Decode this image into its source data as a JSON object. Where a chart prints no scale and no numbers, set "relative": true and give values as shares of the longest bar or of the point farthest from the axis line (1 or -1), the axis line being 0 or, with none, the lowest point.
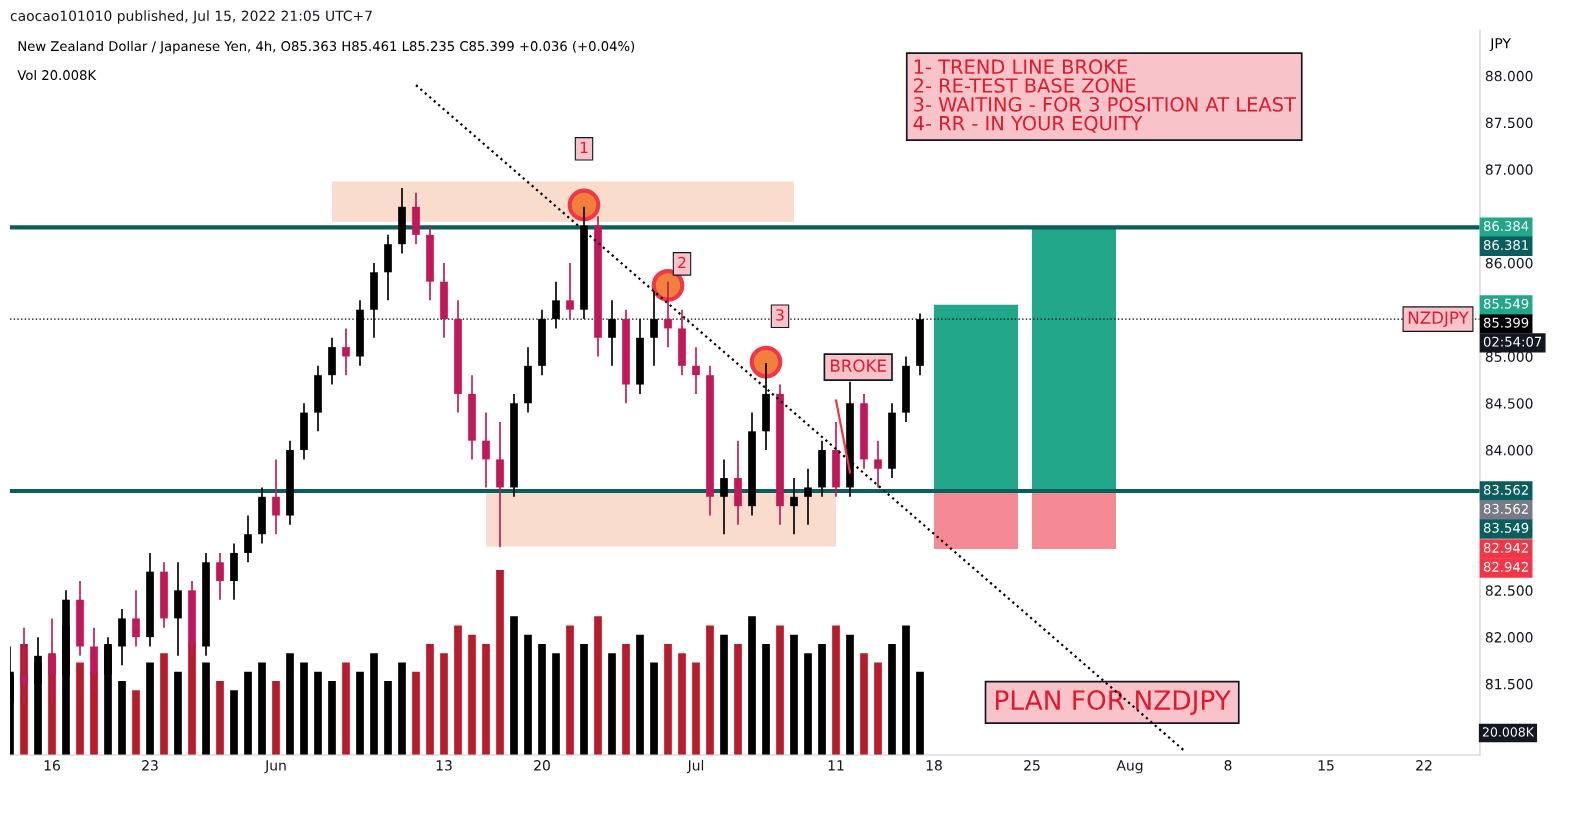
{
  "chart_data": [
    {
      "type": "candlestick",
      "title": "caocao101010 published, Jul 15, 2022 21:05 UTC+7",
      "subtitle": "New Zealand Dollar / Japanese Yen, 4h, O85.363 H85.461 L85.235 C85.399 +0.036 (+0.04%)",
      "ylabel": "JPY",
      "x": [
        "2022-05-13",
        "2022-05-14",
        "2022-05-15",
        "2022-05-16",
        "2022-05-17",
        "2022-05-18",
        "2022-05-19",
        "2022-05-20",
        "2022-05-21",
        "2022-05-22",
        "2022-05-23",
        "2022-05-24",
        "2022-05-25",
        "2022-05-26",
        "2022-05-27",
        "2022-05-28",
        "2022-05-29",
        "2022-05-30",
        "2022-05-31",
        "2022-06-01",
        "2022-06-02",
        "2022-06-03",
        "2022-06-04",
        "2022-06-05",
        "2022-06-06",
        "2022-06-07",
        "2022-06-08",
        "2022-06-09",
        "2022-06-10",
        "2022-06-11",
        "2022-06-12",
        "2022-06-13",
        "2022-06-14",
        "2022-06-15",
        "2022-06-16",
        "2022-06-17",
        "2022-06-18",
        "2022-06-19",
        "2022-06-20",
        "2022-06-21",
        "2022-06-22",
        "2022-06-23",
        "2022-06-24",
        "2022-06-25",
        "2022-06-26",
        "2022-06-27",
        "2022-06-28",
        "2022-06-29",
        "2022-06-30",
        "2022-07-01",
        "2022-07-02",
        "2022-07-03",
        "2022-07-04",
        "2022-07-05",
        "2022-07-06",
        "2022-07-07",
        "2022-07-08",
        "2022-07-09",
        "2022-07-10",
        "2022-07-11",
        "2022-07-12",
        "2022-07-13",
        "2022-07-14",
        "2022-07-15",
        "2022-07-16",
        "2022-07-17"
      ],
      "ohlc": [
        [
          81.3,
          81.9,
          81.1,
          81.6
        ],
        [
          81.6,
          82.1,
          81.3,
          81.5
        ],
        [
          81.5,
          82.0,
          81.2,
          81.8
        ],
        [
          81.8,
          82.2,
          81.3,
          81.6
        ],
        [
          81.6,
          82.5,
          81.5,
          82.4
        ],
        [
          82.4,
          82.6,
          81.8,
          81.9
        ],
        [
          81.9,
          82.1,
          81.4,
          81.6
        ],
        [
          81.6,
          82.0,
          81.4,
          81.9
        ],
        [
          81.9,
          82.3,
          81.7,
          82.2
        ],
        [
          82.2,
          82.5,
          81.9,
          82.0
        ],
        [
          82.0,
          82.9,
          81.9,
          82.7
        ],
        [
          82.7,
          82.8,
          82.1,
          82.2
        ],
        [
          82.2,
          82.8,
          81.8,
          82.5
        ],
        [
          82.5,
          82.6,
          81.8,
          81.9
        ],
        [
          81.9,
          82.9,
          81.8,
          82.8
        ],
        [
          82.8,
          82.9,
          82.4,
          82.6
        ],
        [
          82.6,
          83.0,
          82.4,
          82.9
        ],
        [
          82.9,
          83.3,
          82.8,
          83.1
        ],
        [
          83.1,
          83.6,
          83.0,
          83.5
        ],
        [
          83.5,
          83.9,
          83.1,
          83.3
        ],
        [
          83.3,
          84.1,
          83.2,
          84.0
        ],
        [
          84.0,
          84.5,
          83.9,
          84.4
        ],
        [
          84.4,
          84.9,
          84.2,
          84.8
        ],
        [
          84.8,
          85.2,
          84.7,
          85.1
        ],
        [
          85.1,
          85.3,
          84.8,
          85.0
        ],
        [
          85.0,
          85.6,
          84.9,
          85.5
        ],
        [
          85.5,
          86.0,
          85.2,
          85.9
        ],
        [
          85.9,
          86.3,
          85.6,
          86.2
        ],
        [
          86.2,
          86.8,
          86.1,
          86.6
        ],
        [
          86.6,
          86.75,
          86.2,
          86.3
        ],
        [
          86.3,
          86.4,
          85.6,
          85.8
        ],
        [
          85.8,
          86.0,
          85.2,
          85.4
        ],
        [
          85.4,
          85.6,
          84.4,
          84.6
        ],
        [
          84.6,
          84.8,
          83.9,
          84.1
        ],
        [
          84.1,
          84.4,
          83.6,
          83.9
        ],
        [
          83.9,
          84.3,
          82.96,
          83.6
        ],
        [
          83.6,
          84.6,
          83.5,
          84.5
        ],
        [
          84.5,
          85.1,
          84.4,
          84.9
        ],
        [
          84.9,
          85.5,
          84.8,
          85.4
        ],
        [
          85.4,
          85.8,
          85.3,
          85.6
        ],
        [
          85.6,
          86.0,
          85.4,
          85.5
        ],
        [
          85.5,
          86.6,
          85.4,
          86.4
        ],
        [
          86.4,
          86.5,
          85.0,
          85.2
        ],
        [
          85.2,
          85.6,
          84.9,
          85.4
        ],
        [
          85.4,
          85.5,
          84.5,
          84.7
        ],
        [
          84.7,
          85.4,
          84.6,
          85.2
        ],
        [
          85.2,
          85.7,
          84.9,
          85.4
        ],
        [
          85.4,
          85.8,
          85.1,
          85.3
        ],
        [
          85.3,
          85.5,
          84.8,
          84.9
        ],
        [
          84.9,
          85.1,
          84.6,
          84.8
        ],
        [
          84.8,
          84.9,
          83.3,
          83.5
        ],
        [
          83.5,
          83.9,
          83.1,
          83.7
        ],
        [
          83.7,
          84.1,
          83.2,
          83.4
        ],
        [
          83.4,
          84.4,
          83.3,
          84.2
        ],
        [
          84.2,
          84.93,
          84.0,
          84.6
        ],
        [
          84.6,
          84.7,
          83.2,
          83.4
        ],
        [
          83.4,
          83.7,
          83.1,
          83.5
        ],
        [
          83.5,
          83.8,
          83.2,
          83.6
        ],
        [
          83.6,
          84.1,
          83.5,
          84.0
        ],
        [
          84.0,
          84.3,
          83.5,
          83.6
        ],
        [
          83.6,
          84.73,
          83.5,
          84.5
        ],
        [
          84.5,
          84.6,
          83.8,
          83.9
        ],
        [
          83.9,
          84.1,
          83.6,
          83.8
        ],
        [
          83.8,
          84.5,
          83.7,
          84.4
        ],
        [
          84.4,
          85.0,
          84.3,
          84.9
        ],
        [
          84.9,
          85.46,
          84.8,
          85.399
        ]
      ],
      "colors": [
        "#000000",
        "#c2185b",
        "#000000",
        "#c2185b",
        "#000000",
        "#c2185b",
        "#c2185b",
        "#000000",
        "#000000",
        "#c2185b",
        "#000000",
        "#c2185b",
        "#000000",
        "#c2185b",
        "#000000",
        "#c2185b",
        "#000000",
        "#000000",
        "#000000",
        "#c2185b",
        "#000000",
        "#000000",
        "#000000",
        "#000000",
        "#c2185b",
        "#000000",
        "#000000",
        "#000000",
        "#000000",
        "#c2185b",
        "#c2185b",
        "#c2185b",
        "#c2185b",
        "#c2185b",
        "#c2185b",
        "#c2185b",
        "#000000",
        "#000000",
        "#000000",
        "#000000",
        "#c2185b",
        "#000000",
        "#c2185b",
        "#000000",
        "#c2185b",
        "#000000",
        "#000000",
        "#c2185b",
        "#c2185b",
        "#c2185b",
        "#c2185b",
        "#000000",
        "#c2185b",
        "#000000",
        "#000000",
        "#c2185b",
        "#000000",
        "#000000",
        "#000000",
        "#c2185b",
        "#000000",
        "#c2185b",
        "#c2185b",
        "#000000",
        "#000000",
        "#000000"
      ],
      "series": [
        {
          "type": "bar",
          "x": [
            "2022-06-21T12:00"
          ],
          "base": [
            86.44
          ],
          "values": [
            0.43
          ],
          "color": "#f9dccb"
        },
        {
          "type": "bar",
          "x": [
            "2022-06-28T12:00"
          ],
          "base": [
            82.97
          ],
          "values": [
            0.57
          ],
          "color": "#f9dccb"
        },
        {
          "type": "bar",
          "x": [
            "2022-07-21"
          ],
          "base": [
            83.562
          ],
          "values": [
            1.99
          ],
          "color": "#22a78b"
        },
        {
          "type": "bar",
          "x": [
            "2022-07-21"
          ],
          "base": [
            82.942
          ],
          "values": [
            0.62
          ],
          "color": "#f48a93"
        },
        {
          "type": "bar",
          "x": [
            "2022-07-28"
          ],
          "base": [
            83.562
          ],
          "values": [
            2.82
          ],
          "color": "#22a78b"
        },
        {
          "type": "bar",
          "x": [
            "2022-07-28"
          ],
          "base": [
            82.942
          ],
          "values": [
            0.62
          ],
          "color": "#f48a93"
        },
        {
          "type": "line",
          "x": [
            "2022-06-11",
            "2022-08-05"
          ],
          "values": [
            87.9,
            80.77
          ],
          "color": "#000000",
          "line_style": "dotted"
        },
        {
          "type": "line",
          "x": [
            "2022-07-11",
            "2022-07-12"
          ],
          "values": [
            84.53,
            83.76
          ],
          "color": "#f23645",
          "line_style": "solid"
        },
        {
          "type": "scatter",
          "x": [
            "2022-06-23",
            "2022-06-29",
            "2022-07-06"
          ],
          "values": [
            86.62,
            85.76,
            84.94
          ],
          "color": "#f0803c",
          "marker": "circle"
        }
      ],
      "xlim": [
        "2022-05-13",
        "2022-08-26"
      ],
      "ylim": [
        80.74,
        88.49
      ],
      "xticks": [
        {
          "value": "2022-05-16",
          "label": "16"
        },
        {
          "value": "2022-05-23",
          "label": "23"
        },
        {
          "value": "2022-06-01",
          "label": "Jun"
        },
        {
          "value": "2022-06-13",
          "label": "13"
        },
        {
          "value": "2022-06-20",
          "label": "20"
        },
        {
          "value": "2022-07-01",
          "label": "Jul"
        },
        {
          "value": "2022-07-11",
          "label": "11"
        },
        {
          "value": "2022-07-18",
          "label": "18"
        },
        {
          "value": "2022-07-25",
          "label": "25"
        },
        {
          "value": "2022-08-01",
          "label": "Aug"
        },
        {
          "value": "2022-08-08",
          "label": "8"
        },
        {
          "value": "2022-08-15",
          "label": "15"
        },
        {
          "value": "2022-08-22",
          "label": "22"
        }
      ],
      "yticks": [
        {
          "value": 81.5,
          "label": "81.500"
        },
        {
          "value": 82,
          "label": "82.000"
        },
        {
          "value": 82.5,
          "label": "82.500"
        },
        {
          "value": 84,
          "label": "84.000"
        },
        {
          "value": 84.5,
          "label": "84.500"
        },
        {
          "value": 85,
          "label": "85.000"
        },
        {
          "value": 86,
          "label": "86.000"
        },
        {
          "value": 87,
          "label": "87.000"
        },
        {
          "value": 87.5,
          "label": "87.500"
        },
        {
          "value": 88,
          "label": "88.000"
        }
      ],
      "ref_lines": [
        {
          "axis": "y",
          "value": 86.381,
          "label": "86.381",
          "color": "#0b5e5e",
          "line_style": "solid"
        },
        {
          "axis": "y",
          "value": 83.562,
          "label": "83.562",
          "color": "#0b5e5e",
          "line_style": "solid"
        },
        {
          "axis": "y",
          "value": 85.399,
          "label": "85.399",
          "color": "#000000",
          "line_style": "dotted"
        }
      ],
      "annotations": [
        "Vol 20.008K",
        "1- TREND LINE BROKE\n2- RE-TEST BASE ZONE\n3- WAITING - FOR 3 POSITION AT LEAST\n4- RR - IN YOUR EQUITY",
        "PLAN FOR NZDJPY",
        {
          "text": "1",
          "x": "2022-06-23",
          "y": 87.22
        },
        {
          "text": "2",
          "x": "2022-06-30",
          "y": 85.99
        },
        {
          "text": "3",
          "x": "2022-07-07",
          "y": 85.43
        },
        {
          "text": "NZDJPY",
          "x": "2022-08-23",
          "y": 85.399
        },
        "BROKE",
        "86.384",
        "85.549",
        "02:54:07",
        "83.562",
        "83.549",
        "82.942",
        "82.942"
      ]
    },
    {
      "type": "bar",
      "relative": true,
      "x": [
        "2022-05-13",
        "2022-05-14",
        "2022-05-15",
        "2022-05-16",
        "2022-05-17",
        "2022-05-18",
        "2022-05-19",
        "2022-05-20",
        "2022-05-21",
        "2022-05-22",
        "2022-05-23",
        "2022-05-24",
        "2022-05-25",
        "2022-05-26",
        "2022-05-27",
        "2022-05-28",
        "2022-05-29",
        "2022-05-30",
        "2022-05-31",
        "2022-06-01",
        "2022-06-02",
        "2022-06-03",
        "2022-06-04",
        "2022-06-05",
        "2022-06-06",
        "2022-06-07",
        "2022-06-08",
        "2022-06-09",
        "2022-06-10",
        "2022-06-11",
        "2022-06-12",
        "2022-06-13",
        "2022-06-14",
        "2022-06-15",
        "2022-06-16",
        "2022-06-17",
        "2022-06-18",
        "2022-06-19",
        "2022-06-20",
        "2022-06-21",
        "2022-06-22",
        "2022-06-23",
        "2022-06-24",
        "2022-06-25",
        "2022-06-26",
        "2022-06-27",
        "2022-06-28",
        "2022-06-29",
        "2022-06-30",
        "2022-07-01",
        "2022-07-02",
        "2022-07-03",
        "2022-07-04",
        "2022-07-05",
        "2022-07-06",
        "2022-07-07",
        "2022-07-08",
        "2022-07-09",
        "2022-07-10",
        "2022-07-11",
        "2022-07-12",
        "2022-07-13",
        "2022-07-14",
        "2022-07-15",
        "2022-07-16",
        "2022-07-17"
      ],
      "values": [
        0.45,
        0.6,
        0.5,
        0.55,
        0.7,
        0.5,
        0.45,
        0.6,
        0.4,
        0.35,
        0.5,
        0.55,
        0.45,
        0.6,
        0.5,
        0.4,
        0.35,
        0.45,
        0.5,
        0.4,
        0.55,
        0.5,
        0.45,
        0.4,
        0.5,
        0.45,
        0.55,
        0.4,
        0.5,
        0.45,
        0.6,
        0.55,
        0.7,
        0.65,
        0.6,
        1.0,
        0.75,
        0.65,
        0.6,
        0.55,
        0.7,
        0.6,
        0.75,
        0.55,
        0.6,
        0.65,
        0.5,
        0.6,
        0.55,
        0.5,
        0.7,
        0.65,
        0.6,
        0.75,
        0.6,
        0.7,
        0.65,
        0.55,
        0.6,
        0.7,
        0.65,
        0.55,
        0.5,
        0.6,
        0.7,
        0.45
      ],
      "colors": [
        "#000000",
        "#b71c2c",
        "#000000",
        "#b71c2c",
        "#000000",
        "#b71c2c",
        "#b71c2c",
        "#000000",
        "#000000",
        "#b71c2c",
        "#000000",
        "#b71c2c",
        "#000000",
        "#b71c2c",
        "#000000",
        "#b71c2c",
        "#000000",
        "#000000",
        "#000000",
        "#b71c2c",
        "#000000",
        "#000000",
        "#000000",
        "#000000",
        "#b71c2c",
        "#000000",
        "#000000",
        "#000000",
        "#000000",
        "#b71c2c",
        "#b71c2c",
        "#b71c2c",
        "#b71c2c",
        "#b71c2c",
        "#b71c2c",
        "#b71c2c",
        "#000000",
        "#000000",
        "#000000",
        "#000000",
        "#b71c2c",
        "#000000",
        "#b71c2c",
        "#000000",
        "#b71c2c",
        "#000000",
        "#000000",
        "#b71c2c",
        "#b71c2c",
        "#b71c2c",
        "#b71c2c",
        "#000000",
        "#b71c2c",
        "#000000",
        "#000000",
        "#b71c2c",
        "#000000",
        "#000000",
        "#000000",
        "#b71c2c",
        "#000000",
        "#b71c2c",
        "#b71c2c",
        "#000000",
        "#000000",
        "#000000"
      ],
      "xlim": [
        "2022-05-13",
        "2022-08-26"
      ],
      "annotations": [
        "20.008K"
      ]
    }
  ]
}
